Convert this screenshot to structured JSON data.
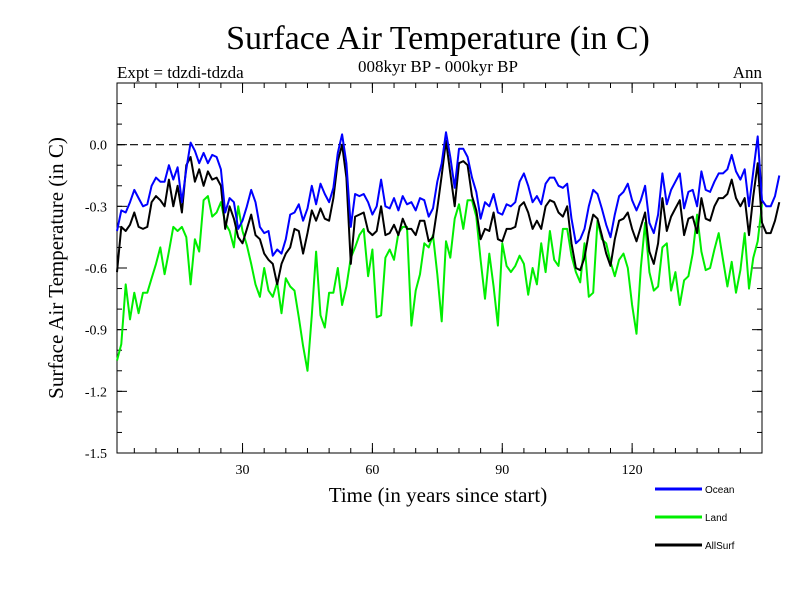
{
  "chart_data": {
    "type": "line",
    "title": "Surface Air Temperature (in C)",
    "subtitle": "008kyr BP - 000kyr BP",
    "left_label": "Expt = tdzdi-tdzda",
    "right_label": "Ann",
    "xlabel": "Time (in years since start)",
    "ylabel": "Surface Air Temperature (in C)",
    "xlim": [
      1,
      150
    ],
    "ylim": [
      -1.5,
      0.3
    ],
    "xticks": [
      30,
      60,
      90,
      120
    ],
    "xtick_labels": [
      "30",
      "60",
      "90",
      "120"
    ],
    "yticks": [
      -1.5,
      -1.2,
      -0.9,
      -0.6,
      -0.3,
      0.0
    ],
    "ytick_labels": [
      "-1.5",
      "-1.2",
      "-0.9",
      "-0.6",
      "-0.3",
      "0.0"
    ],
    "reference_line": 0.0,
    "legend_position": "below-right",
    "series": [
      {
        "name": "Ocean",
        "color": "#0000ff",
        "values": [
          -0.42,
          -0.32,
          -0.33,
          -0.28,
          -0.22,
          -0.26,
          -0.3,
          -0.29,
          -0.2,
          -0.16,
          -0.18,
          -0.18,
          -0.1,
          -0.17,
          -0.11,
          -0.28,
          -0.12,
          0.01,
          -0.03,
          -0.09,
          -0.04,
          -0.09,
          -0.05,
          -0.06,
          -0.12,
          -0.33,
          -0.26,
          -0.28,
          -0.41,
          -0.37,
          -0.3,
          -0.22,
          -0.28,
          -0.4,
          -0.43,
          -0.42,
          -0.54,
          -0.51,
          -0.53,
          -0.46,
          -0.34,
          -0.33,
          -0.29,
          -0.37,
          -0.31,
          -0.2,
          -0.29,
          -0.19,
          -0.24,
          -0.28,
          -0.21,
          -0.04,
          0.05,
          -0.09,
          -0.4,
          -0.24,
          -0.25,
          -0.24,
          -0.28,
          -0.34,
          -0.3,
          -0.17,
          -0.3,
          -0.31,
          -0.26,
          -0.32,
          -0.25,
          -0.29,
          -0.28,
          -0.32,
          -0.26,
          -0.27,
          -0.35,
          -0.31,
          -0.18,
          -0.09,
          0.06,
          -0.06,
          -0.21,
          -0.02,
          -0.02,
          -0.06,
          -0.16,
          -0.23,
          -0.36,
          -0.28,
          -0.3,
          -0.24,
          -0.33,
          -0.34,
          -0.29,
          -0.3,
          -0.28,
          -0.18,
          -0.14,
          -0.2,
          -0.28,
          -0.25,
          -0.29,
          -0.19,
          -0.16,
          -0.16,
          -0.2,
          -0.21,
          -0.19,
          -0.36,
          -0.48,
          -0.46,
          -0.41,
          -0.3,
          -0.22,
          -0.24,
          -0.31,
          -0.39,
          -0.45,
          -0.34,
          -0.25,
          -0.23,
          -0.19,
          -0.27,
          -0.32,
          -0.27,
          -0.2,
          -0.38,
          -0.43,
          -0.34,
          -0.14,
          -0.29,
          -0.22,
          -0.18,
          -0.14,
          -0.31,
          -0.23,
          -0.22,
          -0.3,
          -0.13,
          -0.22,
          -0.23,
          -0.18,
          -0.14,
          -0.14,
          -0.12,
          -0.05,
          -0.13,
          -0.17,
          -0.12,
          -0.3,
          -0.13,
          0.04,
          -0.27,
          -0.3,
          -0.3,
          -0.25,
          -0.15
        ]
      },
      {
        "name": "Land",
        "color": "#00ee00",
        "values": [
          -1.05,
          -0.97,
          -0.68,
          -0.85,
          -0.72,
          -0.82,
          -0.72,
          -0.72,
          -0.65,
          -0.58,
          -0.5,
          -0.63,
          -0.52,
          -0.4,
          -0.42,
          -0.4,
          -0.45,
          -0.68,
          -0.46,
          -0.52,
          -0.27,
          -0.25,
          -0.35,
          -0.33,
          -0.28,
          -0.38,
          -0.42,
          -0.5,
          -0.3,
          -0.42,
          -0.49,
          -0.58,
          -0.68,
          -0.74,
          -0.6,
          -0.71,
          -0.74,
          -0.67,
          -0.82,
          -0.65,
          -0.69,
          -0.71,
          -0.84,
          -0.98,
          -1.1,
          -0.83,
          -0.52,
          -0.83,
          -0.89,
          -0.72,
          -0.72,
          -0.6,
          -0.78,
          -0.69,
          -0.55,
          -0.5,
          -0.44,
          -0.41,
          -0.64,
          -0.51,
          -0.84,
          -0.83,
          -0.55,
          -0.51,
          -0.56,
          -0.43,
          -0.4,
          -0.4,
          -0.88,
          -0.71,
          -0.63,
          -0.48,
          -0.5,
          -0.44,
          -0.63,
          -0.86,
          -0.47,
          -0.55,
          -0.36,
          -0.29,
          -0.41,
          -0.27,
          -0.27,
          -0.35,
          -0.56,
          -0.75,
          -0.53,
          -0.69,
          -0.88,
          -0.48,
          -0.59,
          -0.62,
          -0.59,
          -0.54,
          -0.58,
          -0.73,
          -0.6,
          -0.68,
          -0.48,
          -0.62,
          -0.42,
          -0.56,
          -0.59,
          -0.41,
          -0.41,
          -0.54,
          -0.62,
          -0.67,
          -0.48,
          -0.74,
          -0.72,
          -0.37,
          -0.46,
          -0.48,
          -0.57,
          -0.64,
          -0.56,
          -0.53,
          -0.6,
          -0.78,
          -0.92,
          -0.6,
          -0.38,
          -0.62,
          -0.71,
          -0.69,
          -0.5,
          -0.48,
          -0.71,
          -0.62,
          -0.78,
          -0.66,
          -0.64,
          -0.53,
          -0.34,
          -0.52,
          -0.61,
          -0.6,
          -0.51,
          -0.43,
          -0.56,
          -0.69,
          -0.57,
          -0.72,
          -0.61,
          -0.43,
          -0.7,
          -0.55,
          -0.47,
          -0.29
        ]
      },
      {
        "name": "AllSurf",
        "color": "#000000",
        "values": [
          -0.62,
          -0.4,
          -0.42,
          -0.39,
          -0.33,
          -0.4,
          -0.41,
          -0.4,
          -0.28,
          -0.25,
          -0.27,
          -0.3,
          -0.17,
          -0.3,
          -0.2,
          -0.33,
          -0.1,
          -0.06,
          -0.18,
          -0.12,
          -0.2,
          -0.13,
          -0.17,
          -0.16,
          -0.2,
          -0.41,
          -0.3,
          -0.36,
          -0.45,
          -0.48,
          -0.41,
          -0.34,
          -0.44,
          -0.46,
          -0.53,
          -0.56,
          -0.58,
          -0.68,
          -0.58,
          -0.53,
          -0.5,
          -0.41,
          -0.42,
          -0.53,
          -0.43,
          -0.32,
          -0.37,
          -0.31,
          -0.36,
          -0.37,
          -0.26,
          -0.08,
          0.0,
          -0.16,
          -0.58,
          -0.35,
          -0.34,
          -0.33,
          -0.42,
          -0.44,
          -0.42,
          -0.3,
          -0.44,
          -0.43,
          -0.39,
          -0.44,
          -0.36,
          -0.41,
          -0.41,
          -0.44,
          -0.37,
          -0.37,
          -0.47,
          -0.45,
          -0.31,
          -0.15,
          0.02,
          -0.14,
          -0.3,
          -0.09,
          -0.08,
          -0.1,
          -0.25,
          -0.32,
          -0.46,
          -0.41,
          -0.42,
          -0.33,
          -0.46,
          -0.47,
          -0.41,
          -0.41,
          -0.4,
          -0.3,
          -0.28,
          -0.33,
          -0.41,
          -0.37,
          -0.41,
          -0.3,
          -0.27,
          -0.28,
          -0.33,
          -0.35,
          -0.3,
          -0.48,
          -0.6,
          -0.61,
          -0.55,
          -0.43,
          -0.34,
          -0.36,
          -0.44,
          -0.53,
          -0.59,
          -0.46,
          -0.37,
          -0.36,
          -0.33,
          -0.41,
          -0.47,
          -0.4,
          -0.33,
          -0.52,
          -0.58,
          -0.48,
          -0.26,
          -0.42,
          -0.35,
          -0.31,
          -0.27,
          -0.44,
          -0.36,
          -0.35,
          -0.43,
          -0.26,
          -0.36,
          -0.37,
          -0.3,
          -0.26,
          -0.26,
          -0.24,
          -0.17,
          -0.26,
          -0.3,
          -0.26,
          -0.44,
          -0.25,
          -0.09,
          -0.38,
          -0.43,
          -0.43,
          -0.37,
          -0.28
        ]
      }
    ]
  }
}
